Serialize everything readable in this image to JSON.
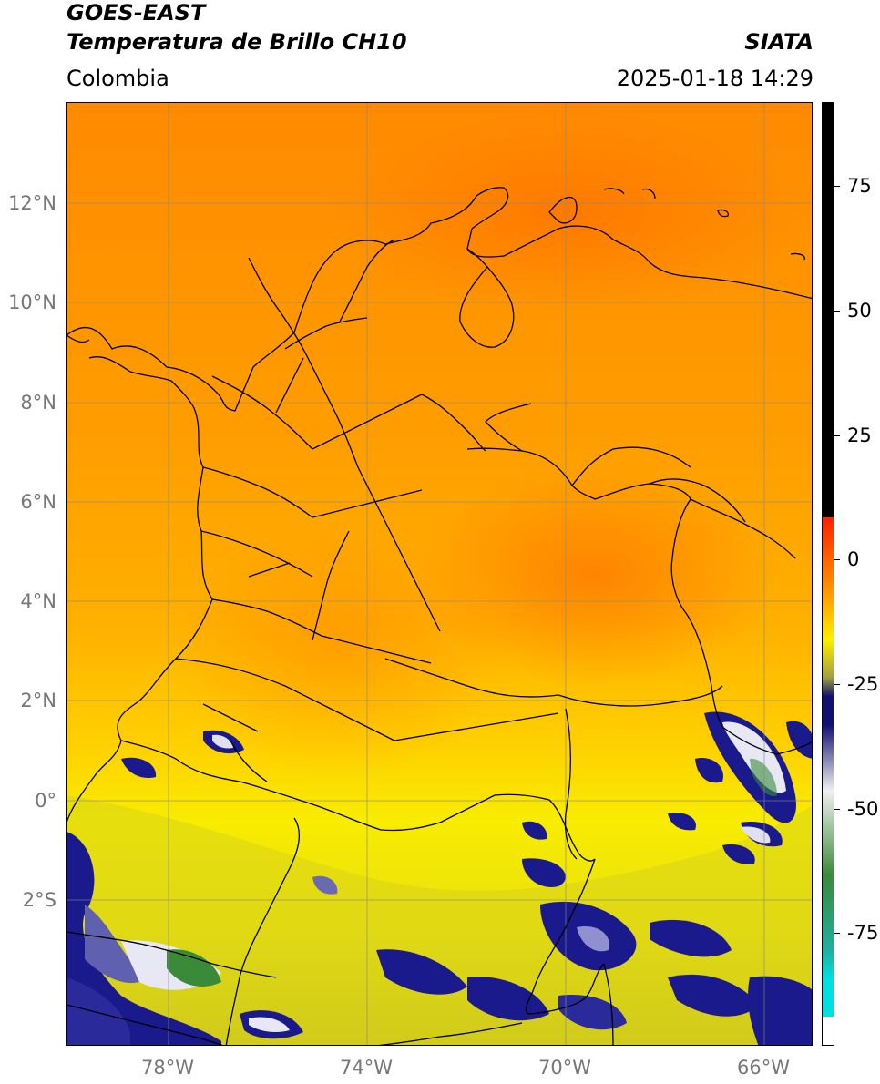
{
  "header": {
    "title_line1": "GOES-EAST",
    "title_line2": "Temperatura de Brillo CH10",
    "source": "SIATA",
    "region": "Colombia",
    "datetime": "2025-01-18 14:29"
  },
  "map": {
    "lat_labels": [
      "12°N",
      "10°N",
      "8°N",
      "6°N",
      "4°N",
      "2°N",
      "0°",
      "2°S"
    ],
    "lon_labels": [
      "78°W",
      "74°W",
      "70°W",
      "66°W"
    ],
    "colors": {
      "warm_north": "#ff9900",
      "warm_mid": "#ffbb00",
      "yellow_south": "#f5f000",
      "olive": "#c8c820",
      "cold_cloud": "#1a1a8c",
      "cloud_white": "#e8e8f0",
      "cloud_green": "#3a8a3a",
      "border": "#000000",
      "grid": "#888888"
    }
  },
  "colorbar": {
    "labels": [
      "75",
      "50",
      "25",
      "0",
      "-25",
      "-50",
      "-75"
    ],
    "colors": {
      "black": "#000000",
      "red": "#ff2000",
      "orange": "#ff9900",
      "yellow": "#ffee00",
      "olive": "#a0a040",
      "navy": "#101070",
      "white": "#f0f0f0",
      "green": "#3a8a3a",
      "teal": "#20b0a0",
      "cyan": "#00e0e0"
    }
  }
}
